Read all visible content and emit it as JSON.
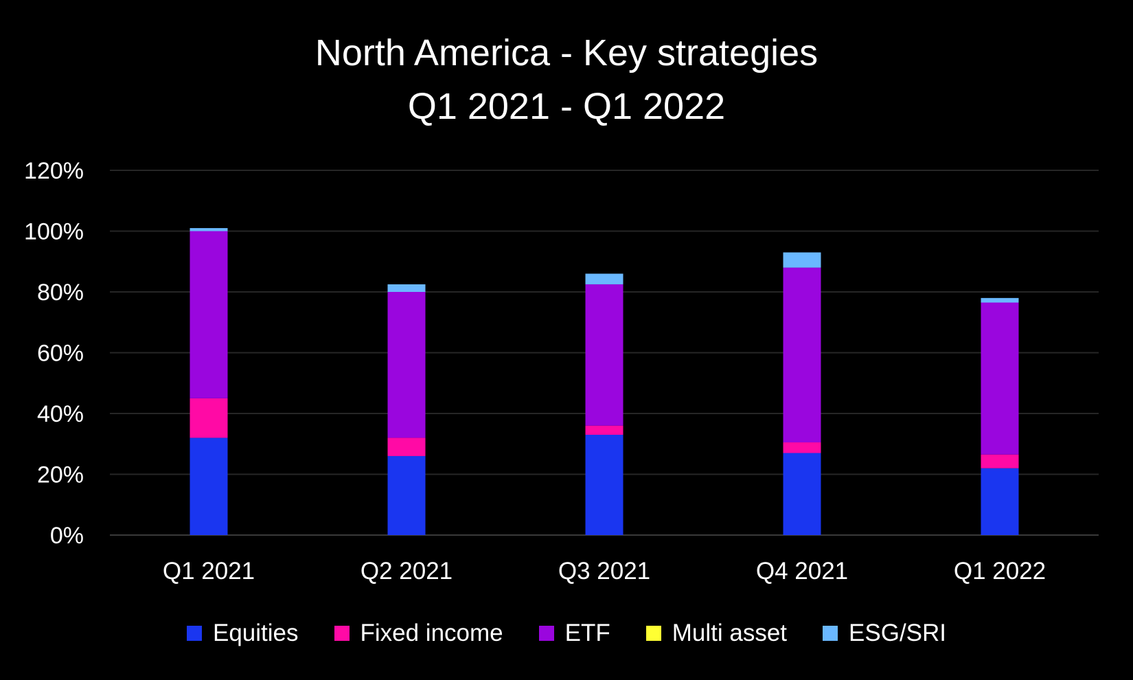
{
  "chart_data": {
    "type": "bar",
    "stacked": true,
    "title": "North America - Key strategies",
    "subtitle": "Q1 2021 - Q1 2022",
    "categories": [
      "Q1 2021",
      "Q2 2021",
      "Q3 2021",
      "Q4 2021",
      "Q1 2022"
    ],
    "series": [
      {
        "name": "Equities",
        "color": "#1a36f0",
        "values": [
          32,
          26,
          33,
          27,
          22
        ]
      },
      {
        "name": "Fixed income",
        "color": "#ff0aa5",
        "values": [
          13,
          6,
          3,
          3.5,
          4.5
        ]
      },
      {
        "name": "ETF",
        "color": "#9a06de",
        "values": [
          55,
          48,
          46.5,
          57.5,
          50
        ]
      },
      {
        "name": "Multi asset",
        "color": "#ffff33",
        "values": [
          0,
          0,
          0,
          0,
          0
        ]
      },
      {
        "name": "ESG/SRI",
        "color": "#6ab8ff",
        "values": [
          1,
          2.5,
          3.5,
          5,
          1.5
        ]
      }
    ],
    "yticks": [
      "0%",
      "20%",
      "40%",
      "60%",
      "80%",
      "100%",
      "120%"
    ],
    "ylim": [
      0,
      120
    ],
    "ystep": 20,
    "grid": true,
    "legend": "bottom"
  }
}
